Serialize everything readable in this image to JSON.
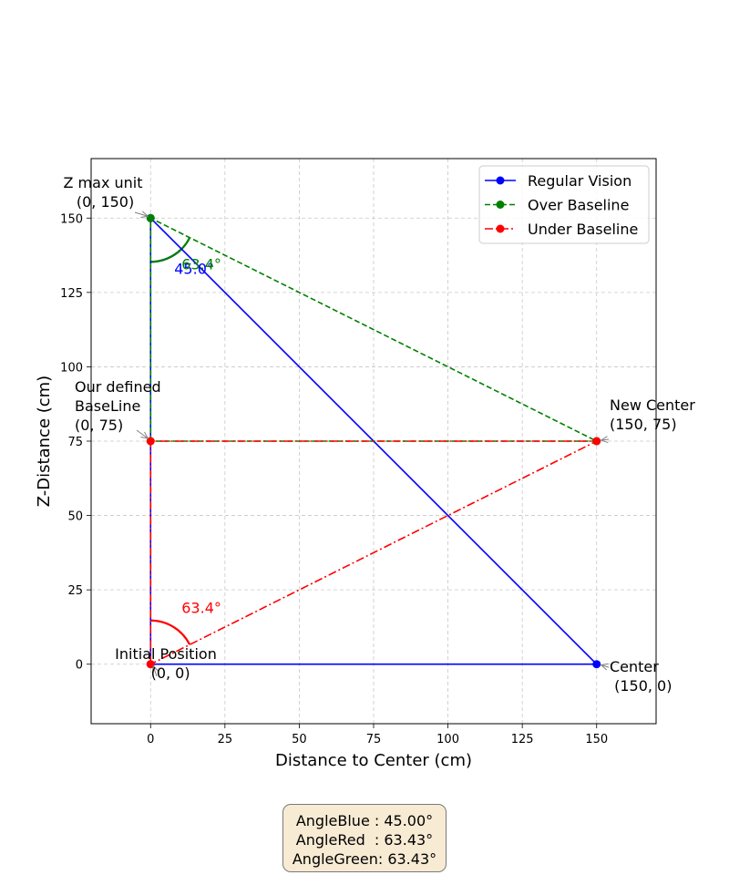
{
  "chart_data": {
    "type": "line",
    "title": "",
    "xlabel": "Distance to Center (cm)",
    "ylabel": "Z-Distance (cm)",
    "xlim": [
      -20,
      170
    ],
    "ylim": [
      -20,
      170
    ],
    "xticks": [
      0,
      25,
      50,
      75,
      100,
      125,
      150
    ],
    "yticks": [
      0,
      25,
      50,
      75,
      100,
      125,
      150
    ],
    "grid": true,
    "legend_position": "top-right",
    "series": [
      {
        "name": "Regular Vision",
        "color": "#0000ff",
        "style": "solid",
        "marker": "circle",
        "points": [
          [
            0,
            0
          ],
          [
            0,
            150
          ],
          [
            150,
            0
          ],
          [
            0,
            0
          ]
        ]
      },
      {
        "name": "Over Baseline",
        "color": "#008000",
        "style": "dashed",
        "marker": "circle",
        "points": [
          [
            0,
            75
          ],
          [
            0,
            150
          ],
          [
            150,
            75
          ],
          [
            0,
            75
          ]
        ]
      },
      {
        "name": "Under Baseline",
        "color": "#ff0000",
        "style": "dashdot",
        "marker": "circle",
        "points": [
          [
            0,
            0
          ],
          [
            0,
            75
          ],
          [
            150,
            75
          ],
          [
            0,
            0
          ]
        ]
      }
    ],
    "annotations": [
      {
        "text": "Z max unit\n (0, 150)",
        "point": [
          0,
          150
        ],
        "anchor": "end"
      },
      {
        "text": "Our defined\nBaseLine\n(0, 75)",
        "point": [
          0,
          75
        ],
        "anchor": "start"
      },
      {
        "text": "New Center\n(150, 75)",
        "point": [
          150,
          75
        ],
        "anchor": "start"
      },
      {
        "text": "Initial Position\n  (0, 0)",
        "point": [
          0,
          0
        ],
        "anchor": "middle"
      },
      {
        "text": "Center\n (150, 0)",
        "point": [
          150,
          0
        ],
        "anchor": "start"
      }
    ],
    "angle_arcs": [
      {
        "label": "45.0°",
        "vertex": [
          0,
          150
        ],
        "color": "#0000ff"
      },
      {
        "label": "63.4°",
        "vertex": [
          0,
          150
        ],
        "color": "#008000"
      },
      {
        "label": "63.4°",
        "vertex": [
          0,
          0
        ],
        "color": "#ff0000"
      }
    ]
  },
  "info_box": {
    "line1": "AngleBlue : 45.00°",
    "line2": "AngleRed  : 63.43°",
    "line3": "AngleGreen: 63.43°"
  }
}
